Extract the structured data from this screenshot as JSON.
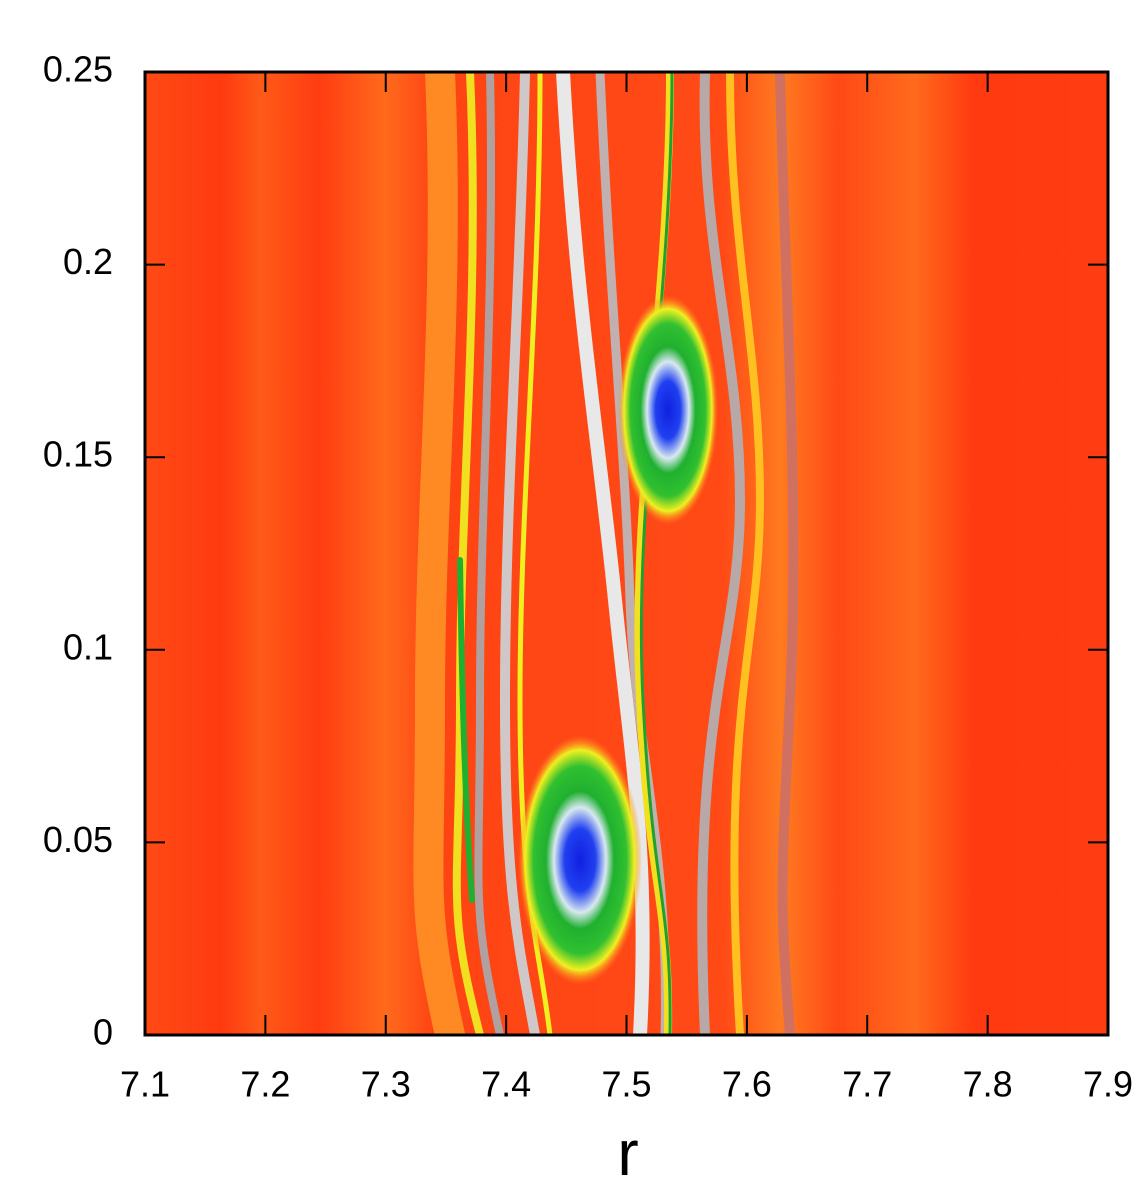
{
  "chart_data": {
    "type": "heatmap",
    "x_label": "r",
    "xlim": [
      7.1,
      7.9
    ],
    "xticks": [
      7.1,
      7.2,
      7.3,
      7.4,
      7.5,
      7.6,
      7.7,
      7.8,
      7.9
    ],
    "ylim": [
      0,
      0.25
    ],
    "yticks": [
      0,
      0.05,
      0.1,
      0.15,
      0.2,
      0.25
    ]
  }
}
